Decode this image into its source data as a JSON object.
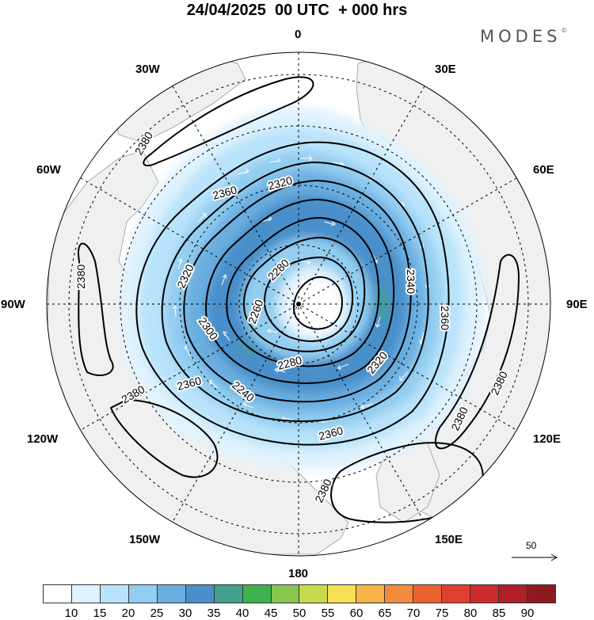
{
  "header": {
    "title": "24/04/2025  00 UTC  + 000 hrs",
    "brand": "MODES"
  },
  "map": {
    "projection": "north-polar-stereographic",
    "longitude_labels": [
      "0",
      "30E",
      "60E",
      "90E",
      "120E",
      "150E",
      "180",
      "150W",
      "120W",
      "90W",
      "60W",
      "30W"
    ],
    "contour_labels": [
      "2380",
      "2380",
      "2380",
      "2380",
      "2380",
      "2380",
      "2360",
      "2360",
      "2360",
      "2360",
      "2340",
      "2320",
      "2320",
      "2320",
      "2300",
      "2280",
      "2280",
      "2260",
      "2240"
    ],
    "land_color": "#f2f2f2",
    "contour_color": "#000000"
  },
  "reference_vector": {
    "label": "50"
  },
  "colorbar": {
    "colors": [
      "#ffffff",
      "#dff2fd",
      "#b9e3fa",
      "#93cdf0",
      "#6aaee0",
      "#4a8fca",
      "#41a08e",
      "#3fb24f",
      "#88c64f",
      "#c7d94d",
      "#f6e053",
      "#f8b24a",
      "#f28b3d",
      "#ec6332",
      "#e04030",
      "#cc2a2b",
      "#b01f27",
      "#8e1a21"
    ],
    "ticks": [
      "10",
      "15",
      "20",
      "25",
      "30",
      "35",
      "40",
      "45",
      "50",
      "55",
      "60",
      "65",
      "70",
      "75",
      "80",
      "85",
      "90"
    ]
  }
}
